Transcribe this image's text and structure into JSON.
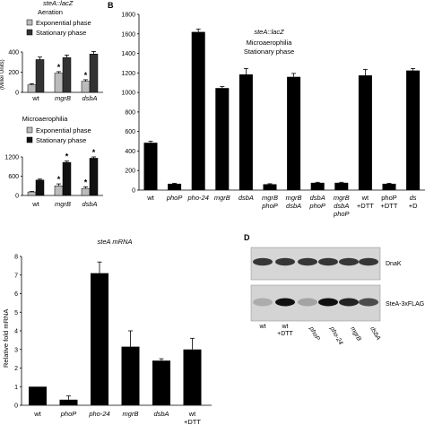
{
  "panel_letters": {
    "b": "B",
    "d": "D"
  },
  "chart_data": [
    {
      "panel": "A-top",
      "type": "bar",
      "title": "steA::lacZ",
      "subtitle": "Aeration",
      "ylabel": "(Miller Units)",
      "ylim": [
        0,
        400
      ],
      "yticks": [
        "0",
        "200",
        "400"
      ],
      "categories": [
        "wt",
        "mgrB",
        "dsbA"
      ],
      "legend": [
        "Exponential phase",
        "Stationary phase"
      ],
      "series": [
        {
          "name": "Exponential phase",
          "color": "#bbbbbb",
          "values": [
            75,
            190,
            110
          ],
          "errors": [
            10,
            15,
            15
          ],
          "stars": [
            "",
            "*",
            "*"
          ]
        },
        {
          "name": "Stationary phase",
          "color": "#333333",
          "values": [
            325,
            345,
            380
          ],
          "errors": [
            25,
            25,
            25
          ],
          "stars": [
            "",
            "",
            ""
          ]
        }
      ]
    },
    {
      "panel": "A-bottom",
      "type": "bar",
      "subtitle": "Microaerophilia",
      "ylim": [
        0,
        1200
      ],
      "yticks": [
        "0",
        "600",
        "1200"
      ],
      "categories": [
        "wt",
        "mgrB",
        "dsbA"
      ],
      "legend": [
        "Exponential phase",
        "Stationary phase"
      ],
      "series": [
        {
          "name": "Exponential phase",
          "color": "#bbbbbb",
          "values": [
            110,
            300,
            220
          ],
          "errors": [
            15,
            60,
            50
          ],
          "stars": [
            "",
            "*",
            "*"
          ]
        },
        {
          "name": "Stationary phase",
          "color": "#111111",
          "values": [
            480,
            1030,
            1160
          ],
          "errors": [
            30,
            40,
            40
          ],
          "stars": [
            "",
            "*",
            "*"
          ]
        }
      ]
    },
    {
      "panel": "B",
      "type": "bar",
      "title": "steA::lacZ",
      "subtitle": "Microaerophilia",
      "subtitle2": "Stationary phase",
      "ylim": [
        0,
        1800
      ],
      "yticks": [
        "0",
        "200",
        "400",
        "600",
        "800",
        "1000",
        "1200",
        "1400",
        "1600",
        "1800"
      ],
      "categories": [
        [
          "wt"
        ],
        [
          "phoP"
        ],
        [
          "pho-24"
        ],
        [
          "mgrB"
        ],
        [
          "dsbA"
        ],
        [
          "mgrB",
          "phoP"
        ],
        [
          "mgrB",
          "dsbA"
        ],
        [
          "dsbA",
          "phoP"
        ],
        [
          "mgrB",
          "dsbA",
          "phoP"
        ],
        [
          "wt",
          "+DTT"
        ],
        [
          "phoP",
          "+DTT"
        ],
        [
          "ds",
          "+D"
        ]
      ],
      "italic": [
        false,
        true,
        true,
        true,
        true,
        true,
        true,
        true,
        true,
        false,
        false,
        true
      ],
      "values": [
        485,
        65,
        1620,
        1045,
        1185,
        60,
        1160,
        75,
        75,
        1175,
        65,
        1225
      ],
      "errors": [
        15,
        5,
        30,
        15,
        60,
        5,
        35,
        5,
        5,
        60,
        5,
        20
      ]
    },
    {
      "panel": "C",
      "type": "bar",
      "title": "steA mRNA",
      "ylabel": "Relative fold mRNA",
      "ylim": [
        0,
        8
      ],
      "yticks": [
        "0",
        "1",
        "2",
        "3",
        "4",
        "5",
        "6",
        "7",
        "8"
      ],
      "categories": [
        [
          "wt"
        ],
        [
          "phoP"
        ],
        [
          "pho-24"
        ],
        [
          "mgrB"
        ],
        [
          "dsbA"
        ],
        [
          "wt",
          "+DTT"
        ]
      ],
      "italic": [
        false,
        true,
        true,
        true,
        true,
        false
      ],
      "values": [
        1.0,
        0.3,
        7.1,
        3.15,
        2.4,
        3.0
      ],
      "errors": [
        0,
        0.2,
        0.6,
        0.85,
        0.1,
        0.6
      ]
    },
    {
      "panel": "D",
      "type": "other",
      "band_labels": [
        "DnaK",
        "SteA-3xFLAG"
      ],
      "lane_labels": [
        [
          "wt"
        ],
        [
          "wt",
          "+DTT"
        ],
        [
          "phoP"
        ],
        [
          "pho-24"
        ],
        [
          "mgrB"
        ],
        [
          "dsbA"
        ]
      ],
      "italic": [
        false,
        false,
        true,
        true,
        true,
        true
      ]
    }
  ]
}
